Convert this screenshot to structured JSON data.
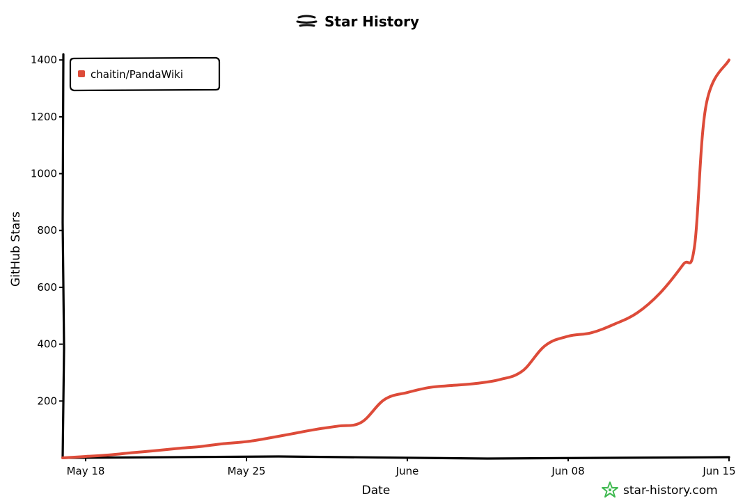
{
  "chart_data": {
    "type": "line",
    "title": "Star History",
    "xlabel": "Date",
    "ylabel": "GitHub Stars",
    "x_tick_labels": [
      "May 18",
      "May 25",
      "June",
      "Jun 08",
      "Jun 15"
    ],
    "x_tick_dates": [
      "2025-05-18",
      "2025-05-25",
      "2025-06-01",
      "2025-06-08",
      "2025-06-15"
    ],
    "xlim": [
      "2025-05-17",
      "2025-06-15"
    ],
    "y_ticks": [
      200,
      400,
      600,
      800,
      1000,
      1200,
      1400
    ],
    "ylim": [
      0,
      1420
    ],
    "grid": false,
    "legend_position": "top-left",
    "series": [
      {
        "name": "chaitin/PandaWiki",
        "color": "#dd4b39",
        "points": [
          [
            "2025-05-17",
            0
          ],
          [
            "2025-05-18",
            5
          ],
          [
            "2025-05-19",
            10
          ],
          [
            "2025-05-20",
            18
          ],
          [
            "2025-05-21",
            25
          ],
          [
            "2025-05-22",
            33
          ],
          [
            "2025-05-23",
            40
          ],
          [
            "2025-05-24",
            50
          ],
          [
            "2025-05-25",
            57
          ],
          [
            "2025-05-26",
            70
          ],
          [
            "2025-05-27",
            85
          ],
          [
            "2025-05-28",
            100
          ],
          [
            "2025-05-29",
            112
          ],
          [
            "2025-05-30",
            125
          ],
          [
            "2025-05-31",
            205
          ],
          [
            "2025-06-01",
            230
          ],
          [
            "2025-06-02",
            248
          ],
          [
            "2025-06-03",
            255
          ],
          [
            "2025-06-04",
            262
          ],
          [
            "2025-06-05",
            275
          ],
          [
            "2025-06-06",
            305
          ],
          [
            "2025-06-07",
            395
          ],
          [
            "2025-06-08",
            428
          ],
          [
            "2025-06-09",
            440
          ],
          [
            "2025-06-10",
            470
          ],
          [
            "2025-06-11",
            510
          ],
          [
            "2025-06-12",
            580
          ],
          [
            "2025-06-13",
            680
          ],
          [
            "2025-06-13T12:00",
            745
          ],
          [
            "2025-06-14",
            1240
          ],
          [
            "2025-06-15",
            1400
          ]
        ]
      }
    ]
  },
  "brand": {
    "text": "star-history.com",
    "icon": "star-history-logo-icon",
    "logo_color": "#3fb950"
  }
}
